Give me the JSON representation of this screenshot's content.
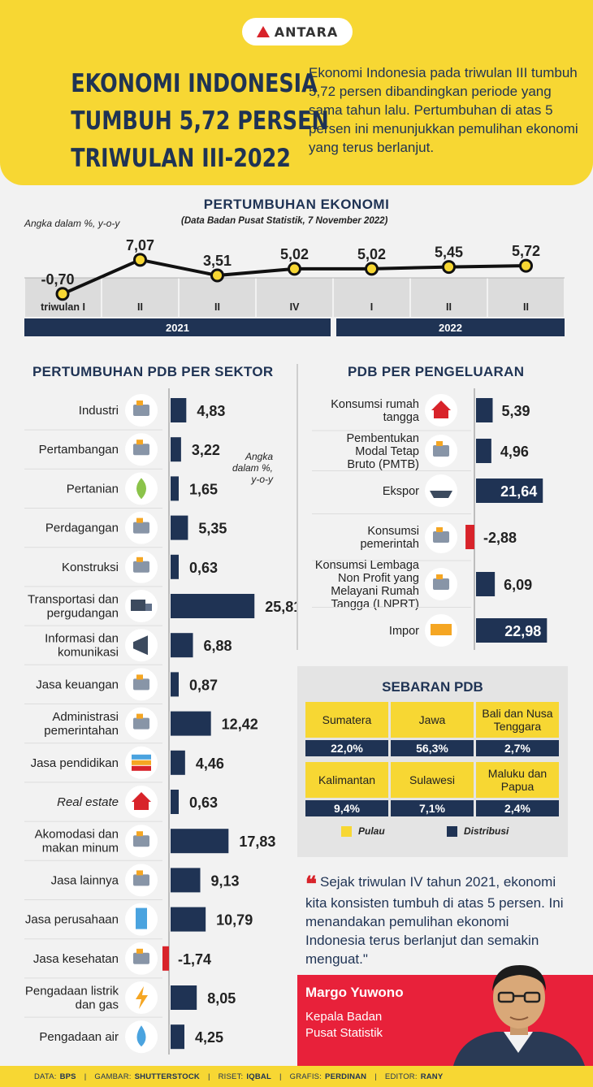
{
  "header": {
    "logo_text": "ANTARA",
    "title_lines": [
      "EKONOMI INDONESIA",
      "TUMBUH 5,72 PERSEN",
      "TRIWULAN III-2022"
    ],
    "intro": "Ekonomi Indonesia pada triwulan III tumbuh 5,72 persen dibandingkan periode yang sama tahun lalu. Pertumbuhan di atas 5 persen ini menunjukkan pemulihan ekonomi yang terus berlanjut."
  },
  "growth": {
    "title": "PERTUMBUHAN EKONOMI",
    "unit": "Angka dalam %, y-o-y",
    "source": "(Data Badan Pusat Statistik, 7 November 2022)"
  },
  "sector": {
    "title": "PERTUMBUHAN PDB PER SEKTOR",
    "unit_note": [
      "Angka",
      "dalam %,",
      "y-o-y"
    ]
  },
  "spending": {
    "title": "PDB PER PENGELUARAN"
  },
  "sebaran": {
    "title": "SEBARAN PDB",
    "regions": [
      {
        "name": "Sumatera",
        "share": "22,0%"
      },
      {
        "name": "Jawa",
        "share": "56,3%"
      },
      {
        "name": "Bali dan Nusa Tenggara",
        "share": "2,7%"
      },
      {
        "name": "Kalimantan",
        "share": "9,4%"
      },
      {
        "name": "Sulawesi",
        "share": "7,1%"
      },
      {
        "name": "Maluku dan Papua",
        "share": "2,4%"
      }
    ],
    "legend_pulau": "Pulau",
    "legend_distribusi": "Distribusi",
    "colors": {
      "pulau": "#f7d733",
      "distribusi": "#1f3354"
    }
  },
  "quote": {
    "text": "Sejak triwulan IV tahun 2021, ekonomi kita konsisten tumbuh di atas 5 persen. Ini menandakan pemulihan ekonomi Indonesia terus berlanjut dan semakin menguat.\"",
    "speaker_name": "Margo Yuwono",
    "speaker_role_1": "Kepala Badan",
    "speaker_role_2": "Pusat Statistik"
  },
  "footer": {
    "items": [
      {
        "key": "DATA:",
        "value": "BPS"
      },
      {
        "key": "GAMBAR:",
        "value": "SHUTTERSTOCK"
      },
      {
        "key": "RISET:",
        "value": "IQBAL"
      },
      {
        "key": "GRAFIS:",
        "value": "PERDINAN"
      },
      {
        "key": "EDITOR:",
        "value": "RANY"
      }
    ]
  },
  "chart_data": [
    {
      "type": "line",
      "title": "PERTUMBUHAN EKONOMI",
      "x": [
        "triwulan I",
        "II",
        "II",
        "IV",
        "I",
        "II",
        "II"
      ],
      "year_groups": [
        {
          "label": "2021",
          "span": 4
        },
        {
          "label": "2022",
          "span": 3
        }
      ],
      "series": [
        {
          "values": [
            -0.7,
            7.07,
            3.51,
            5.02,
            5.02,
            5.45,
            5.72
          ]
        }
      ],
      "labels": [
        "-0,70",
        "7,07",
        "3,51",
        "5,02",
        "5,02",
        "5,45",
        "5,72"
      ],
      "colors": {
        "line": "#111111",
        "point": "#f7d733",
        "band": "#1f3354"
      }
    },
    {
      "type": "bar",
      "title": "PERTUMBUHAN PDB PER SEKTOR",
      "categories": [
        "Industri",
        "Pertambangan",
        "Pertanian",
        "Perdagangan",
        "Konstruksi",
        "Transportasi dan pergudangan",
        "Informasi dan komunikasi",
        "Jasa keuangan",
        "Administrasi pemerintahan",
        "Jasa pendidikan",
        "Real estate",
        "Akomodasi dan makan minum",
        "Jasa lainnya",
        "Jasa perusahaan",
        "Jasa kesehatan",
        "Pengadaan listrik dan gas",
        "Pengadaan air"
      ],
      "values": [
        4.83,
        3.22,
        1.65,
        5.35,
        0.63,
        25.81,
        6.88,
        0.87,
        12.42,
        4.46,
        0.63,
        17.83,
        9.13,
        10.79,
        -1.74,
        8.05,
        4.25
      ],
      "labels": [
        "4,83",
        "3,22",
        "1,65",
        "5,35",
        "0,63",
        "25,81",
        "6,88",
        "0,87",
        "12,42",
        "4,46",
        "0,63",
        "17,83",
        "9,13",
        "10,79",
        "-1,74",
        "8,05",
        "4,25"
      ],
      "icons": [
        "factory-icon",
        "excavator-icon",
        "leaf-icon",
        "shop-icon",
        "crane-icon",
        "truck-icon",
        "megaphone-icon",
        "banker-icon",
        "office-worker-icon",
        "books-icon",
        "house-icon",
        "meal-icon",
        "gear-person-icon",
        "building-icon",
        "doctor-icon",
        "lightning-icon",
        "water-drop-icon"
      ],
      "colors": {
        "positive": "#1f3354",
        "negative": "#d8232a"
      }
    },
    {
      "type": "bar",
      "title": "PDB PER PENGELUARAN",
      "categories": [
        "Konsumsi rumah tangga",
        "Pembentukan Modal Tetap Bruto (PMTB)",
        "Ekspor",
        "Konsumsi pemerintah",
        "Konsumsi Lembaga Non Profit yang Melayani Rumah Tangga (LNPRT)",
        "Impor"
      ],
      "values": [
        5.39,
        4.96,
        21.64,
        -2.88,
        6.09,
        22.98
      ],
      "labels": [
        "5,39",
        "4,96",
        "21,64",
        "-2,88",
        "6,09",
        "22,98"
      ],
      "icons": [
        "household-icon",
        "construction-icon",
        "cargo-ship-icon",
        "government-icon",
        "charity-icon",
        "containers-icon"
      ],
      "colors": {
        "positive": "#1f3354",
        "negative": "#d8232a"
      }
    }
  ]
}
